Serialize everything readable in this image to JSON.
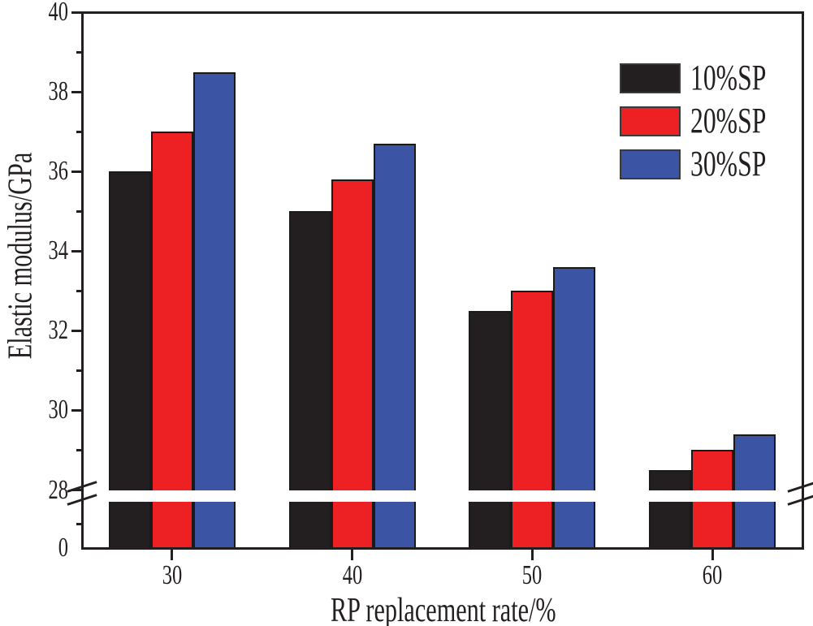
{
  "figure": {
    "background": "#ffffff",
    "axis_color": "#231F20",
    "bar_border": "#1A1A1A"
  },
  "chart_data": {
    "type": "bar",
    "title": "",
    "xlabel": "RP replacement rate/%",
    "ylabel": "Elastic modulus/GPa",
    "categories": [
      "30",
      "40",
      "50",
      "60"
    ],
    "series": [
      {
        "name": "10%SP",
        "color": "#231F20",
        "values": [
          36.0,
          35.0,
          32.5,
          28.5
        ]
      },
      {
        "name": "20%SP",
        "color": "#ED2024",
        "values": [
          37.0,
          35.8,
          33.0,
          29.0
        ]
      },
      {
        "name": "30%SP",
        "color": "#3B54A4",
        "values": [
          38.5,
          36.7,
          33.6,
          29.4
        ]
      }
    ],
    "y_axis": {
      "unit": "GPa",
      "major_ticks": [
        28,
        30,
        32,
        34,
        36,
        38,
        40
      ],
      "minor_ticks": [
        29,
        31,
        33,
        35,
        37,
        39
      ],
      "origin_tick_label": "0",
      "ylim_linear": [
        28,
        40
      ],
      "axis_break": {
        "enabled": true,
        "between": [
          0,
          28
        ]
      }
    },
    "legend": {
      "position": "top-right",
      "entries": [
        "10%SP",
        "20%SP",
        "30%SP"
      ]
    },
    "grid": false
  }
}
